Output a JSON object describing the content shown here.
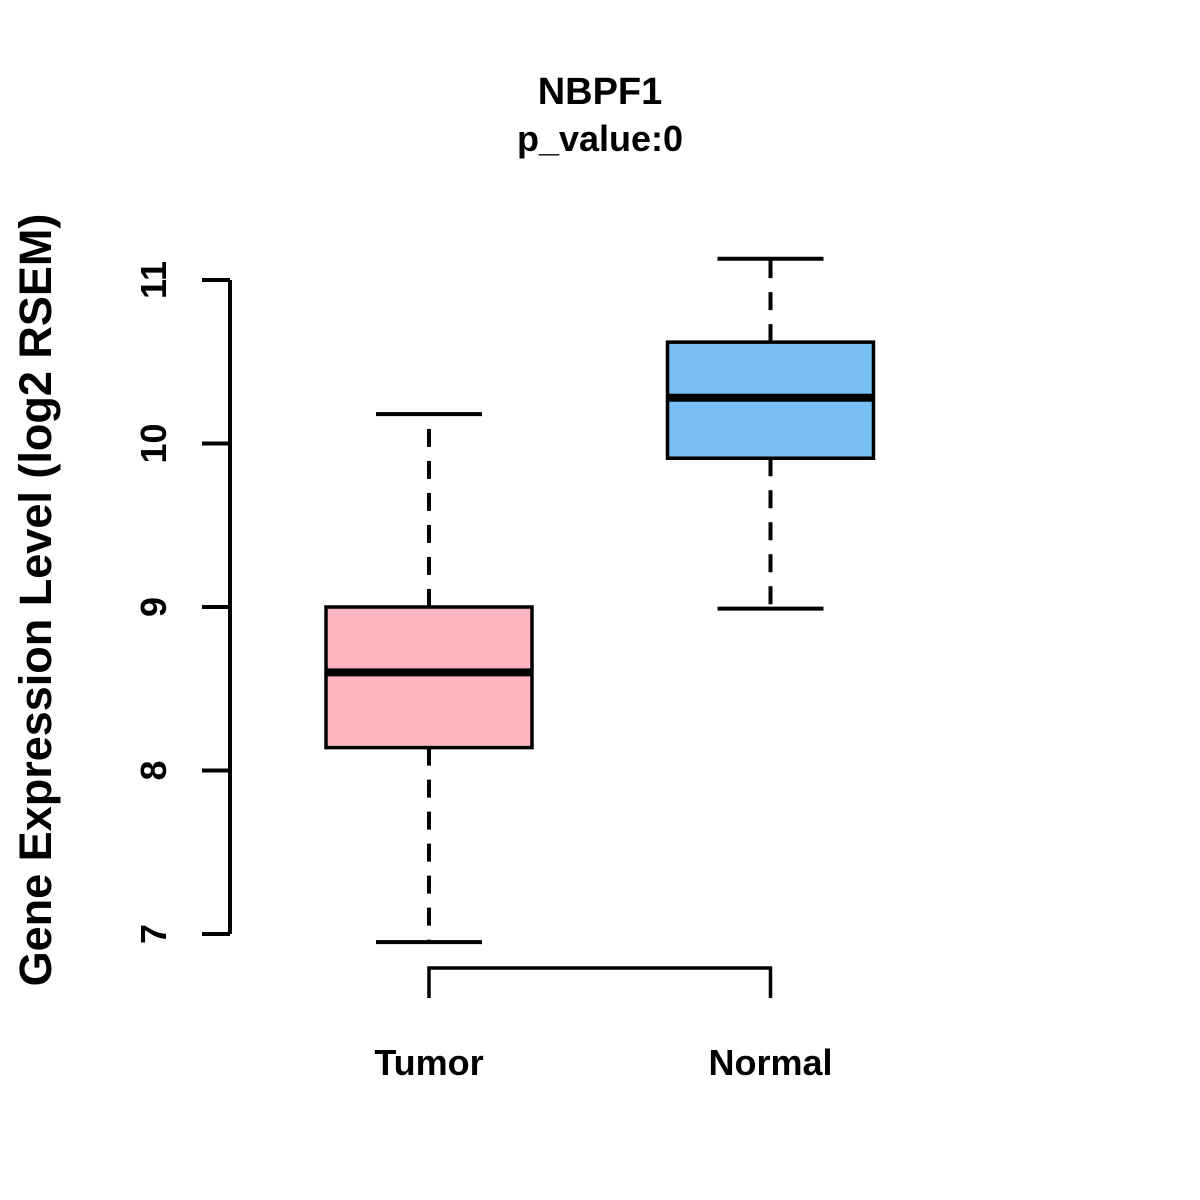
{
  "chart_data": {
    "type": "boxplot",
    "title": "NBPF1",
    "subtitle": "p_value:0",
    "ylabel": "Gene Expression Level (log2 RSEM)",
    "xlabel": "",
    "ylim": [
      7,
      11
    ],
    "yticks": [
      7,
      8,
      9,
      10,
      11
    ],
    "grid": false,
    "legend": "none",
    "whisker_line_style": "dashed",
    "groups": [
      {
        "label": "Tumor",
        "color": "#FFB6C1",
        "whisker_low": 6.95,
        "q1": 8.14,
        "median": 8.6,
        "q3": 9.0,
        "whisker_high": 10.18
      },
      {
        "label": "Normal",
        "color": "#77BEF4",
        "whisker_low": 8.99,
        "q1": 9.91,
        "median": 10.28,
        "q3": 10.62,
        "whisker_high": 11.13
      }
    ],
    "styles": {
      "box_border_color": "#000000",
      "median_color": "#000000",
      "axis_color": "#000000",
      "text_color": "#000000",
      "background": "#ffffff"
    }
  }
}
